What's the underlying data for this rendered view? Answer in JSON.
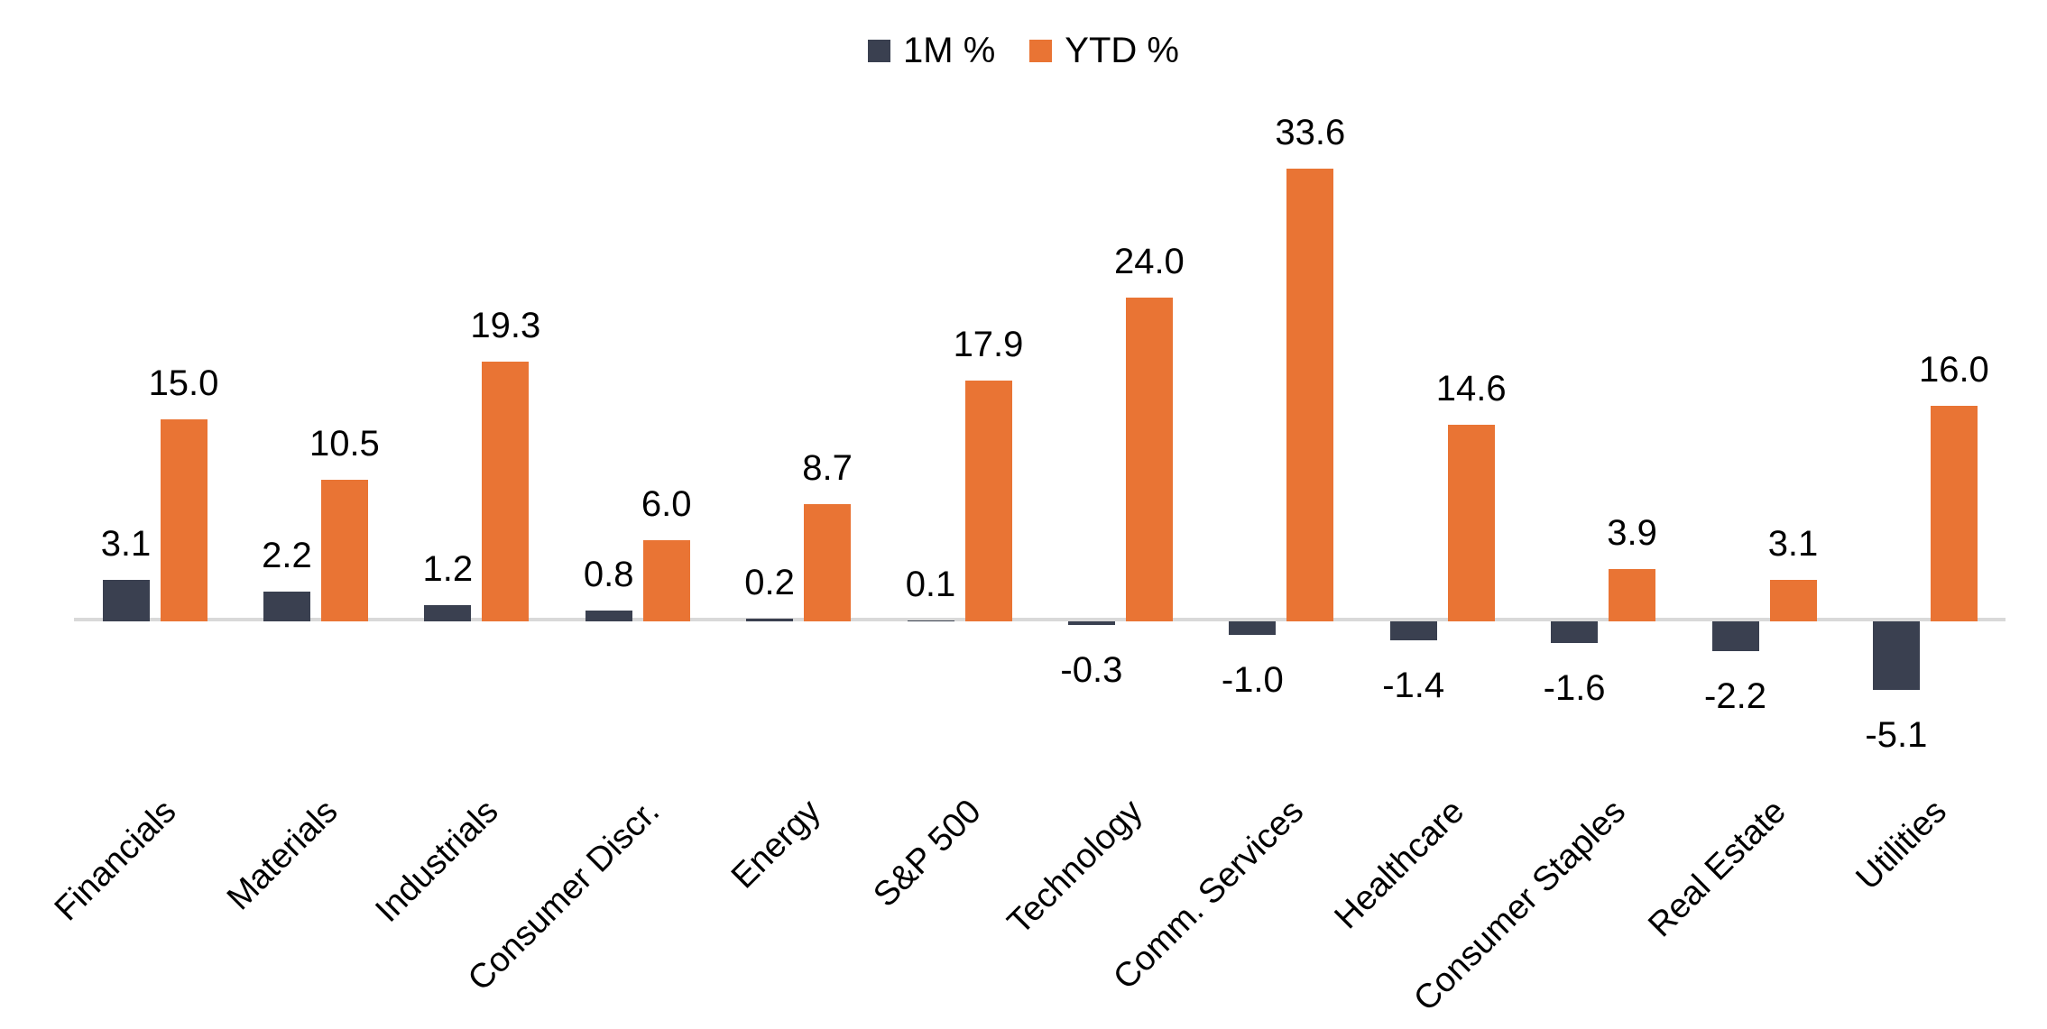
{
  "chart_data": {
    "type": "bar",
    "title": "",
    "categories": [
      "Financials",
      "Materials",
      "Industrials",
      "Consumer Discr.",
      "Energy",
      "S&P 500",
      "Technology",
      "Comm. Services",
      "Healthcare",
      "Consumer Staples",
      "Real Estate",
      "Utilities"
    ],
    "series": [
      {
        "name": "1M %",
        "color": "#3A4050",
        "values": [
          3.1,
          2.2,
          1.2,
          0.8,
          0.2,
          0.1,
          -0.3,
          -1.0,
          -1.4,
          -1.6,
          -2.2,
          -5.1
        ]
      },
      {
        "name": "YTD %",
        "color": "#E97434",
        "values": [
          15.0,
          10.5,
          19.3,
          6.0,
          8.7,
          17.9,
          24.0,
          33.6,
          14.6,
          3.9,
          3.1,
          16.0
        ]
      }
    ],
    "data_labels": {
      "visible": true,
      "format": "one-decimal",
      "labels_1m": [
        "3.1",
        "2.2",
        "1.2",
        "0.8",
        "0.2",
        "0.1",
        "-0.3",
        "-1.0",
        "-1.4",
        "-1.6",
        "-2.2",
        "-5.1"
      ],
      "labels_ytd": [
        "15.0",
        "10.5",
        "19.3",
        "6.0",
        "8.7",
        "17.9",
        "24.0",
        "33.6",
        "14.6",
        "3.9",
        "3.1",
        "16.0"
      ]
    },
    "xlabel": "",
    "ylabel": "",
    "y_axis_visible": false,
    "gridlines": false,
    "baseline_value": 0,
    "legend_position": "top-center",
    "x_label_rotation_deg": 45,
    "colors": {
      "series_1m": "#3A4050",
      "series_ytd": "#E97434",
      "axis_line": "#D9D9D9",
      "text": "#000000",
      "background": "#FFFFFF"
    }
  }
}
